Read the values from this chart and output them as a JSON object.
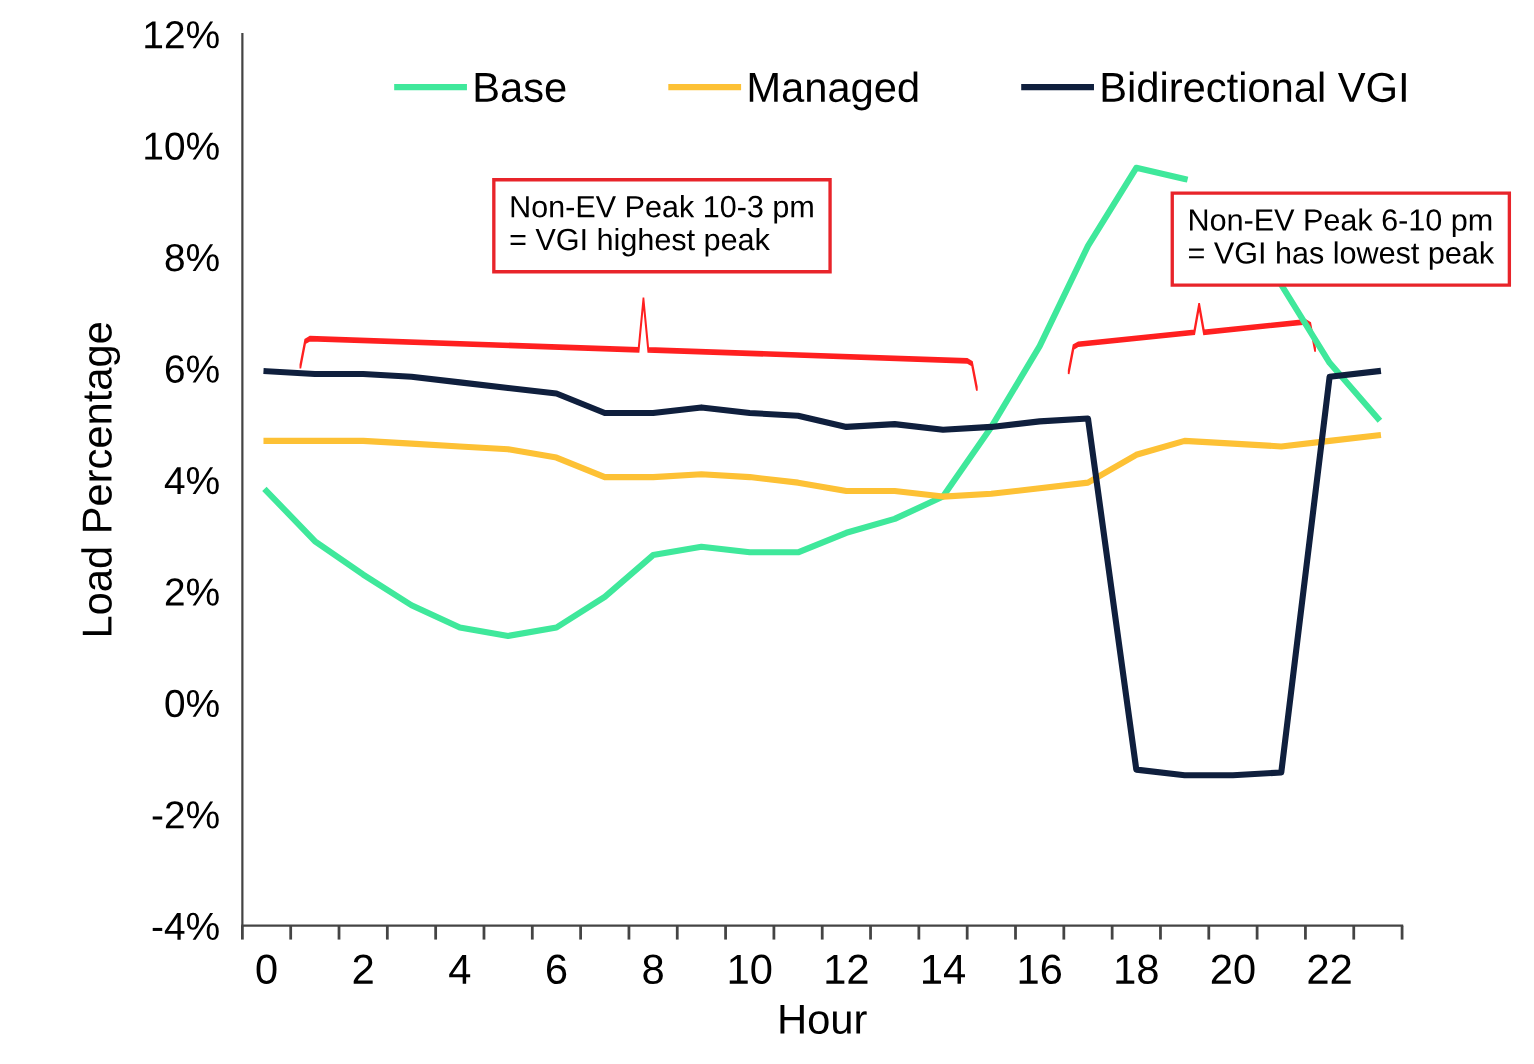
{
  "chart_data": {
    "type": "line",
    "xlabel": "Hour",
    "ylabel": "Load Percentage",
    "categories": [
      "0",
      null,
      "2",
      null,
      "4",
      null,
      "6",
      null,
      "8",
      null,
      "10",
      null,
      "12",
      null,
      "14",
      null,
      "16",
      null,
      "18",
      null,
      "20",
      null,
      "22",
      null
    ],
    "series": [
      {
        "name": "Base",
        "color": "#3fe89b",
        "values": [
          3.8,
          2.9,
          2.3,
          1.75,
          1.35,
          1.2,
          1.35,
          1.9,
          2.65,
          2.8,
          2.7,
          2.7,
          3.05,
          3.3,
          3.7,
          4.95,
          6.4,
          8.2,
          9.6,
          9.4,
          null,
          7.5,
          6.1,
          5.1
        ]
      },
      {
        "name": "Managed",
        "color": "#fdc135",
        "values": [
          4.7,
          4.7,
          4.7,
          4.65,
          4.6,
          4.55,
          4.4,
          4.05,
          4.05,
          4.1,
          4.05,
          3.95,
          3.8,
          3.8,
          3.7,
          3.75,
          3.85,
          3.95,
          4.45,
          4.7,
          4.65,
          4.6,
          4.7,
          4.8
        ]
      },
      {
        "name": "Bidirectional VGI",
        "color": "#0f1f3d",
        "values": [
          5.95,
          5.9,
          5.9,
          5.85,
          5.75,
          5.65,
          5.55,
          5.2,
          5.2,
          5.3,
          5.2,
          5.15,
          4.95,
          5.0,
          4.9,
          4.95,
          5.05,
          5.1,
          -1.2,
          -1.3,
          -1.3,
          -1.25,
          5.85,
          5.95
        ]
      }
    ],
    "ylim": [
      -4,
      12
    ],
    "yticks": [
      {
        "value": -4,
        "label": "-4%"
      },
      {
        "value": -2,
        "label": "-2%"
      },
      {
        "value": 0,
        "label": "0%"
      },
      {
        "value": 2,
        "label": "2%"
      },
      {
        "value": 4,
        "label": "4%"
      },
      {
        "value": 6,
        "label": "6%"
      },
      {
        "value": 8,
        "label": "8%"
      },
      {
        "value": 10,
        "label": "10%"
      },
      {
        "value": 12,
        "label": "12%"
      }
    ],
    "legend": "top",
    "grid": false,
    "annotations": [
      "Non-EV Peak 10-3 pm\n= VGI highest peak",
      "Non-EV Peak 6-10 pm\n= VGI has lowest peak"
    ]
  }
}
